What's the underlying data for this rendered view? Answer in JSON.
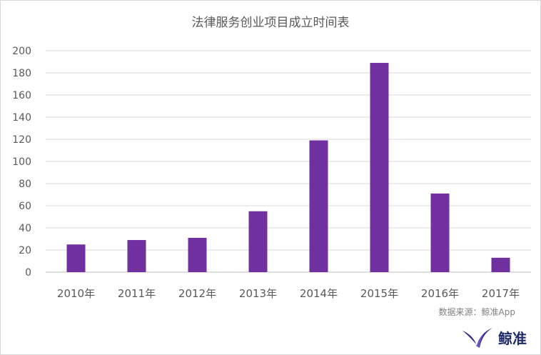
{
  "chart_data": {
    "type": "bar",
    "title": "法律服务创业项目成立时间表",
    "categories": [
      "2010年",
      "2011年",
      "2012年",
      "2013年",
      "2014年",
      "2015年",
      "2016年",
      "2017年"
    ],
    "values": [
      25,
      29,
      31,
      55,
      119,
      189,
      71,
      13
    ],
    "ylim": [
      0,
      200
    ],
    "yticks": [
      0,
      20,
      40,
      60,
      80,
      100,
      120,
      140,
      160,
      180,
      200
    ],
    "grid": true,
    "bar_color": "#7030a0",
    "xlabel": "",
    "ylabel": ""
  },
  "source_note": "数据来源：鲸准App",
  "logo": {
    "text": "鲸准",
    "icon": "whale-tail-icon",
    "color": "#1f2a6b"
  }
}
